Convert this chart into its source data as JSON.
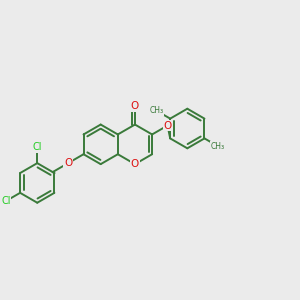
{
  "bg_color": "#ebebeb",
  "bond_color": "#3a7a3a",
  "O_color": "#dd1111",
  "Cl_color": "#22cc22",
  "lw": 1.4,
  "dbl_off": 0.017,
  "fs": 7.0,
  "figsize": [
    3.0,
    3.0
  ],
  "dpi": 100,
  "xlim": [
    -1.55,
    1.55
  ],
  "ylim": [
    -1.05,
    1.05
  ]
}
